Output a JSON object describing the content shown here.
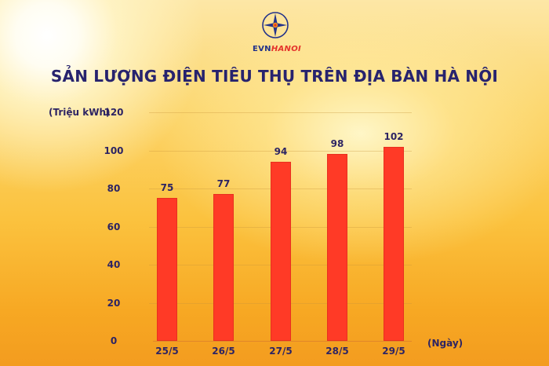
{
  "brand": {
    "evn": "EVN",
    "hanoi": "HANOI"
  },
  "colors": {
    "bar": "#ff3a26",
    "text": "#2d2463",
    "title": "#27236e",
    "brand_blue": "#23338a",
    "brand_red": "#e4322b"
  },
  "chart_data": {
    "type": "bar",
    "title": "SẢN LƯỢNG ĐIỆN TIÊU THỤ TRÊN ĐỊA BÀN HÀ NỘI",
    "xlabel": "(Ngày)",
    "ylabel": "(Triệu kWh)",
    "categories": [
      "25/5",
      "26/5",
      "27/5",
      "28/5",
      "29/5"
    ],
    "values": [
      75,
      77,
      94,
      98,
      102
    ],
    "ylim": [
      0,
      120
    ],
    "yticks": [
      0,
      20,
      40,
      60,
      80,
      100,
      120
    ],
    "grid": true,
    "data_labels": true,
    "legend": null
  }
}
